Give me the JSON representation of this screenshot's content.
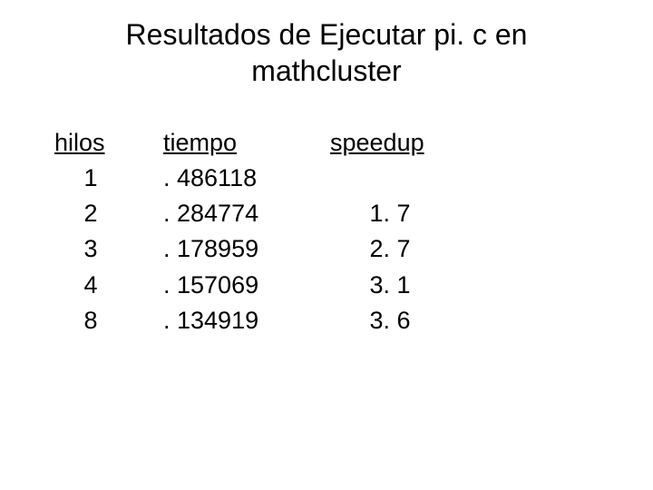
{
  "title_line1": "Resultados de Ejecutar pi. c en",
  "title_line2": "mathcluster",
  "table": {
    "headers": {
      "hilos": "hilos",
      "tiempo": "tiempo",
      "speedup": "speedup"
    },
    "rows": [
      {
        "hilos": "1",
        "tiempo": ". 486118",
        "speedup": ""
      },
      {
        "hilos": "2",
        "tiempo": ". 284774",
        "speedup": "1. 7"
      },
      {
        "hilos": "3",
        "tiempo": ". 178959",
        "speedup": "2. 7"
      },
      {
        "hilos": "4",
        "tiempo": ". 157069",
        "speedup": "3. 1"
      },
      {
        "hilos": "8",
        "tiempo": ". 134919",
        "speedup": "3. 6"
      }
    ]
  },
  "style": {
    "background_color": "#ffffff",
    "text_color": "#000000",
    "title_fontsize": 32,
    "body_fontsize": 27,
    "font_family": "Arial"
  }
}
